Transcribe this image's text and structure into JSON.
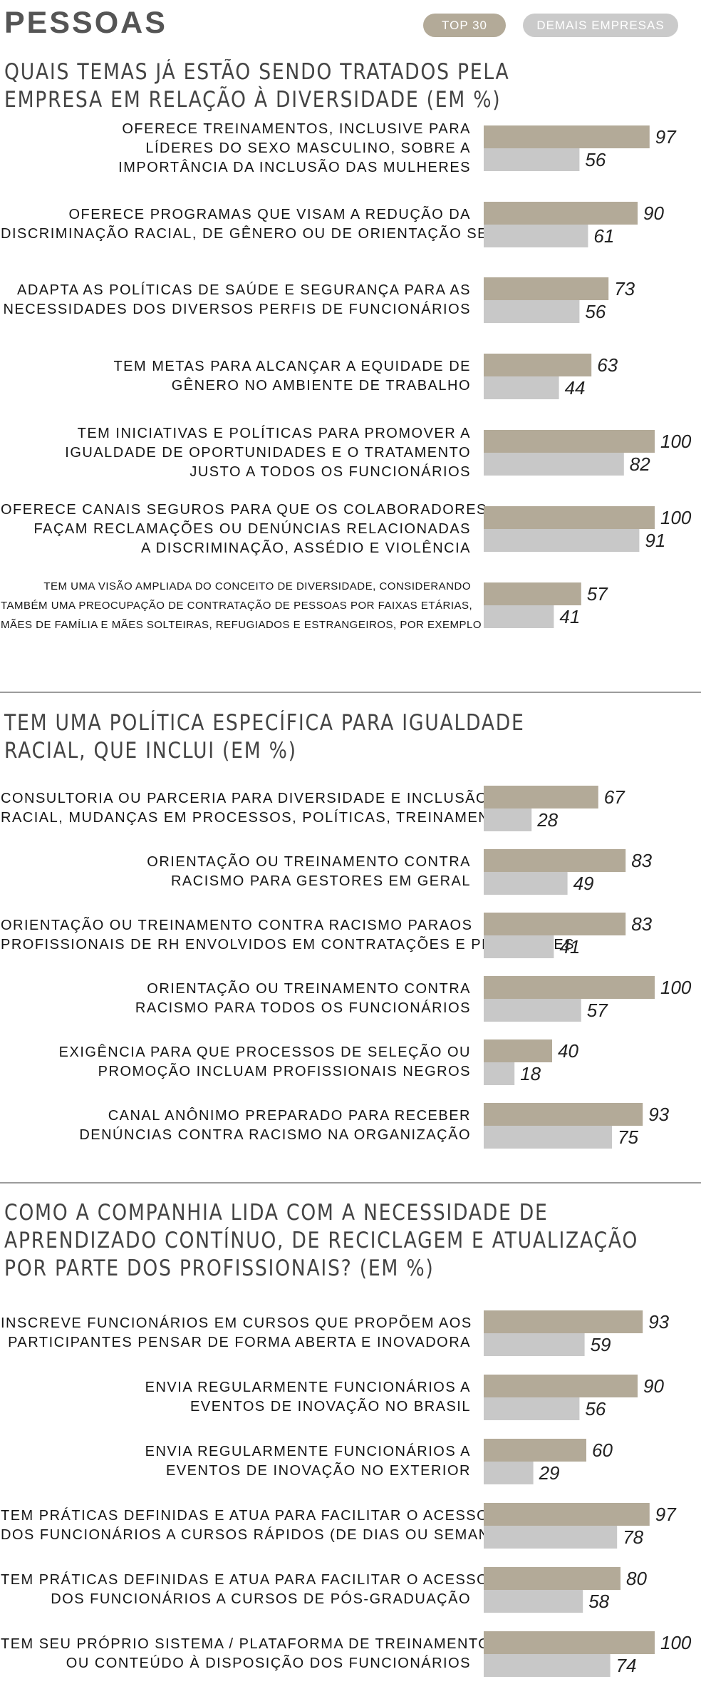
{
  "header": {
    "title": "PESSOAS",
    "legend": {
      "top30": "TOP 30",
      "others": "DEMAIS EMPRESAS"
    }
  },
  "colors": {
    "top30": "#b3aa98",
    "others": "#c8c8c8"
  },
  "chart_data": [
    {
      "type": "bar",
      "orientation": "horizontal",
      "title": [
        "QUAIS TEMAS JÁ ESTÃO SENDO TRATADOS PELA",
        "EMPRESA EM RELAÇÃO À DIVERSIDADE (EM %)"
      ],
      "categories": [
        [
          "OFERECE TREINAMENTOS, INCLUSIVE PARA",
          "LÍDERES DO SEXO MASCULINO, SOBRE A",
          "IMPORTÂNCIA DA INCLUSÃO DAS MULHERES"
        ],
        [
          "OFERECE PROGRAMAS QUE VISAM A REDUÇÃO DA",
          "DISCRIMINAÇÃO RACIAL, DE GÊNERO OU DE ORIENTAÇÃO SEXUAL"
        ],
        [
          "ADAPTA AS POLÍTICAS DE SAÚDE E SEGURANÇA PARA AS",
          "NECESSIDADES DOS DIVERSOS PERFIS DE FUNCIONÁRIOS"
        ],
        [
          "TEM METAS PARA ALCANÇAR A EQUIDADE DE",
          "GÊNERO NO AMBIENTE DE TRABALHO"
        ],
        [
          "TEM INICIATIVAS E POLÍTICAS PARA PROMOVER A",
          "IGUALDADE DE OPORTUNIDADES E O TRATAMENTO",
          "JUSTO A TODOS OS FUNCIONÁRIOS"
        ],
        [
          "OFERECE CANAIS SEGUROS PARA QUE OS COLABORADORES",
          "FAÇAM RECLAMAÇÕES OU DENÚNCIAS RELACIONADAS",
          "A DISCRIMINAÇÃO, ASSÉDIO E VIOLÊNCIA"
        ],
        [
          "TEM UMA VISÃO AMPLIADA DO CONCEITO DE DIVERSIDADE, CONSIDERANDO",
          "TAMBÉM UMA PREOCUPAÇÃO DE CONTRATAÇÃO DE PESSOAS POR FAIXAS ETÁRIAS,",
          "MÃES DE FAMÍLIA E MÃES SOLTEIRAS, REFUGIADOS E ESTRANGEIROS, POR EXEMPLO"
        ]
      ],
      "series": [
        {
          "name": "TOP 30",
          "values": [
            97,
            90,
            73,
            63,
            100,
            100,
            57
          ]
        },
        {
          "name": "DEMAIS EMPRESAS",
          "values": [
            56,
            61,
            56,
            44,
            82,
            91,
            41
          ]
        }
      ],
      "xlim": [
        0,
        100
      ]
    },
    {
      "type": "bar",
      "orientation": "horizontal",
      "title": [
        "TEM UMA POLÍTICA ESPECÍFICA PARA IGUALDADE",
        "RACIAL, QUE INCLUI (EM %)"
      ],
      "categories": [
        [
          "CONSULTORIA OU PARCERIA PARA DIVERSIDADE E INCLUSÃO",
          "RACIAL, MUDANÇAS EM PROCESSOS, POLÍTICAS, TREINAMENTOS"
        ],
        [
          "ORIENTAÇÃO OU TREINAMENTO CONTRA",
          "RACISMO PARA GESTORES EM GERAL"
        ],
        [
          "ORIENTAÇÃO OU TREINAMENTO CONTRA RACISMO PARAOS",
          "PROFISSIONAIS DE RH ENVOLVIDOS EM CONTRATAÇÕES E PROMOÇÕES"
        ],
        [
          "ORIENTAÇÃO OU TREINAMENTO CONTRA",
          "RACISMO PARA TODOS OS FUNCIONÁRIOS"
        ],
        [
          "EXIGÊNCIA PARA QUE PROCESSOS DE SELEÇÃO OU",
          "PROMOÇÃO INCLUAM PROFISSIONAIS NEGROS"
        ],
        [
          "CANAL ANÔNIMO PREPARADO PARA RECEBER",
          "DENÚNCIAS CONTRA RACISMO NA ORGANIZAÇÃO"
        ]
      ],
      "series": [
        {
          "name": "TOP 30",
          "values": [
            67,
            83,
            83,
            100,
            40,
            93
          ]
        },
        {
          "name": "DEMAIS EMPRESAS",
          "values": [
            28,
            49,
            41,
            57,
            18,
            75
          ]
        }
      ],
      "xlim": [
        0,
        100
      ]
    },
    {
      "type": "bar",
      "orientation": "horizontal",
      "title": [
        "COMO A COMPANHIA LIDA COM A NECESSIDADE DE",
        "APRENDIZADO CONTÍNUO, DE RECICLAGEM E ATUALIZAÇÃO",
        "POR PARTE DOS PROFISSIONAIS? (EM %)"
      ],
      "categories": [
        [
          "INSCREVE FUNCIONÁRIOS EM CURSOS QUE PROPÕEM AOS",
          "PARTICIPANTES PENSAR DE FORMA ABERTA E INOVADORA"
        ],
        [
          "ENVIA REGULARMENTE FUNCIONÁRIOS A",
          "EVENTOS DE INOVAÇÃO NO BRASIL"
        ],
        [
          "ENVIA REGULARMENTE FUNCIONÁRIOS A",
          "EVENTOS DE INOVAÇÃO NO EXTERIOR"
        ],
        [
          "TEM PRÁTICAS DEFINIDAS E ATUA PARA FACILITAR O ACESSO",
          "DOS FUNCIONÁRIOS A CURSOS RÁPIDOS (DE DIAS OU SEMANAS)"
        ],
        [
          "TEM PRÁTICAS DEFINIDAS E ATUA PARA FACILITAR O ACESSO",
          "DOS FUNCIONÁRIOS A CURSOS DE PÓS-GRADUAÇÃO"
        ],
        [
          "TEM SEU PRÓPRIO SISTEMA / PLATAFORMA DE TREINAMENTO",
          "OU CONTEÚDO À DISPOSIÇÃO DOS FUNCIONÁRIOS"
        ]
      ],
      "series": [
        {
          "name": "TOP 30",
          "values": [
            93,
            90,
            60,
            97,
            80,
            100
          ]
        },
        {
          "name": "DEMAIS EMPRESAS",
          "values": [
            59,
            56,
            29,
            78,
            58,
            74
          ]
        }
      ],
      "xlim": [
        0,
        100
      ]
    }
  ]
}
